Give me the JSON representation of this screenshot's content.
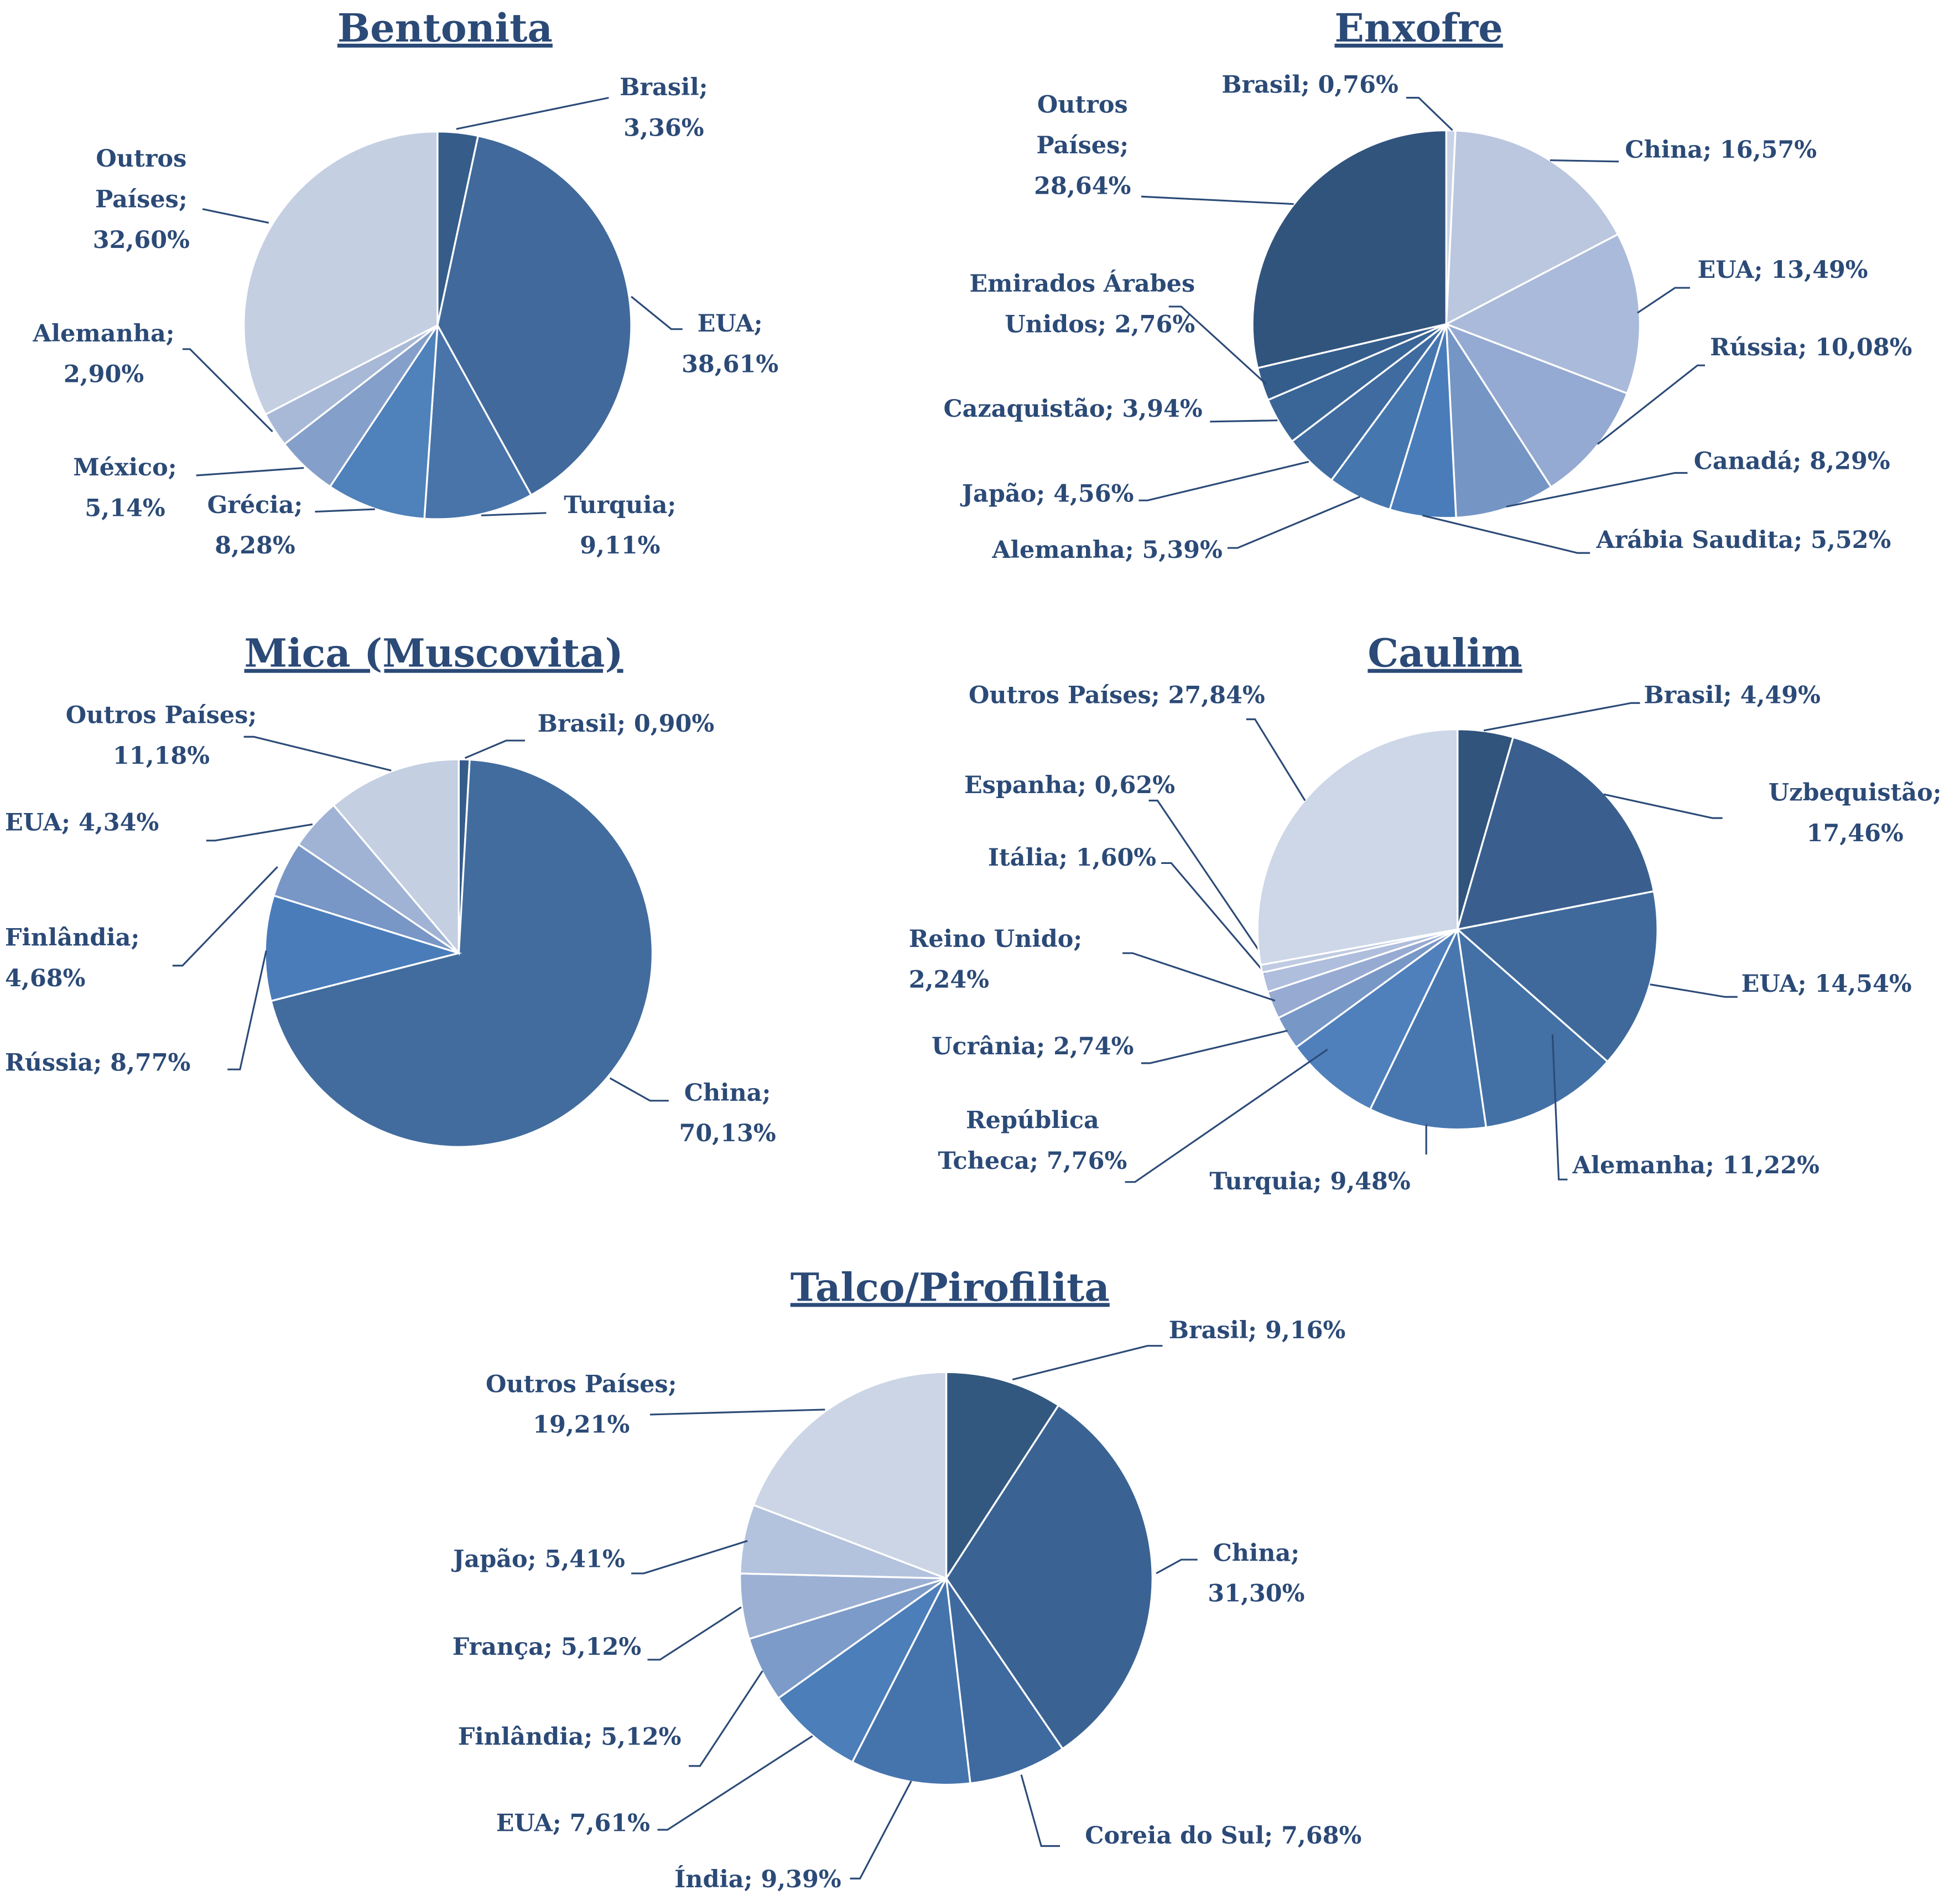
{
  "chart_data": [
    {
      "type": "pie",
      "title": "Bentonita",
      "slices": [
        {
          "label": "Brasil",
          "value": 3.36,
          "lines": [
            "Brasil;",
            "3,36%"
          ],
          "color": "#365d8a"
        },
        {
          "label": "EUA",
          "value": 38.61,
          "lines": [
            "EUA;",
            "38,61%"
          ],
          "color": "#41699b"
        },
        {
          "label": "Turquia",
          "value": 9.11,
          "lines": [
            "Turquia;",
            "9,11%"
          ],
          "color": "#4874aa"
        },
        {
          "label": "Grécia",
          "value": 8.28,
          "lines": [
            "Grécia;",
            "8,28%"
          ],
          "color": "#4f81ba"
        },
        {
          "label": "México",
          "value": 5.14,
          "lines": [
            "México;",
            "5,14%"
          ],
          "color": "#849fc9"
        },
        {
          "label": "Alemanha",
          "value": 2.9,
          "lines": [
            "Alemanha;",
            "2,90%"
          ],
          "color": "#a8b9d7"
        },
        {
          "label": "Outros Países",
          "value": 32.6,
          "lines": [
            "Outros",
            "Países;",
            "32,60%"
          ],
          "color": "#c4cfe2"
        }
      ]
    },
    {
      "type": "pie",
      "title": "Enxofre",
      "slices": [
        {
          "label": "Brasil",
          "value": 0.76,
          "lines": [
            "Brasil; 0,76%"
          ],
          "color": "#c9d3e6"
        },
        {
          "label": "China",
          "value": 16.57,
          "lines": [
            "China; 16,57%"
          ],
          "color": "#bac7df"
        },
        {
          "label": "EUA",
          "value": 13.49,
          "lines": [
            "EUA; 13,49%"
          ],
          "color": "#aabada"
        },
        {
          "label": "Rússia",
          "value": 10.08,
          "lines": [
            "Rússia; 10,08%"
          ],
          "color": "#95aad2"
        },
        {
          "label": "Canadá",
          "value": 8.29,
          "lines": [
            "Canadá; 8,29%"
          ],
          "color": "#7595c4"
        },
        {
          "label": "Arábia Saudita",
          "value": 5.52,
          "lines": [
            "Arábia Saudita; 5,52%"
          ],
          "color": "#4a7cba"
        },
        {
          "label": "Alemanha",
          "value": 5.39,
          "lines": [
            "Alemanha; 5,39%"
          ],
          "color": "#4576ae"
        },
        {
          "label": "Japão",
          "value": 4.56,
          "lines": [
            "Japão; 4,56%"
          ],
          "color": "#3f6ba0"
        },
        {
          "label": "Cazaquistão",
          "value": 3.94,
          "lines": [
            "Cazaquistão; 3,94%"
          ],
          "color": "#3a6597"
        },
        {
          "label": "Emirados Árabes Unidos",
          "value": 2.76,
          "lines": [
            "Emirados Árabes",
            "Unidos; 2,76%"
          ],
          "color": "#355d8c"
        },
        {
          "label": "Outros Países",
          "value": 28.64,
          "lines": [
            "Outros",
            "Países;",
            "28,64%"
          ],
          "color": "#31547c"
        }
      ]
    },
    {
      "type": "pie",
      "title": "Mica (Muscovita)",
      "slices": [
        {
          "label": "Brasil",
          "value": 0.9,
          "lines": [
            "Brasil; 0,90%"
          ],
          "color": "#365d8a"
        },
        {
          "label": "China",
          "value": 70.13,
          "lines": [
            "China;",
            "70,13%"
          ],
          "color": "#426c9e"
        },
        {
          "label": "Rússia",
          "value": 8.77,
          "lines": [
            "Rússia; 8,77%"
          ],
          "color": "#4a7cba"
        },
        {
          "label": "Finlândia",
          "value": 4.68,
          "lines": [
            "Finlândia;",
            "4,68%"
          ],
          "color": "#7896c6"
        },
        {
          "label": "EUA",
          "value": 4.34,
          "lines": [
            "EUA; 4,34%"
          ],
          "color": "#a0b3d5"
        },
        {
          "label": "Outros Países",
          "value": 11.18,
          "lines": [
            "Outros Países;",
            "11,18%"
          ],
          "color": "#c4cfe2"
        }
      ]
    },
    {
      "type": "pie",
      "title": "Caulim",
      "slices": [
        {
          "label": "Brasil",
          "value": 4.49,
          "lines": [
            "Brasil; 4,49%"
          ],
          "color": "#31547c"
        },
        {
          "label": "Uzbequistão",
          "value": 17.46,
          "lines": [
            "Uzbequistão;",
            "17,46%"
          ],
          "color": "#3a5f8e"
        },
        {
          "label": "EUA",
          "value": 14.54,
          "lines": [
            "EUA; 14,54%"
          ],
          "color": "#3f699b"
        },
        {
          "label": "Alemanha",
          "value": 11.22,
          "lines": [
            "Alemanha; 11,22%"
          ],
          "color": "#4371a6"
        },
        {
          "label": "Turquia",
          "value": 9.48,
          "lines": [
            "Turquia; 9,48%"
          ],
          "color": "#4877b0"
        },
        {
          "label": "República Tcheca",
          "value": 7.76,
          "lines": [
            "República",
            "Tcheca; 7,76%"
          ],
          "color": "#4f80bb"
        },
        {
          "label": "Ucrânia",
          "value": 2.74,
          "lines": [
            "Ucrânia; 2,74%"
          ],
          "color": "#7797c6"
        },
        {
          "label": "Reino Unido",
          "value": 2.24,
          "lines": [
            "Reino Unido;",
            "2,24%"
          ],
          "color": "#97aad2"
        },
        {
          "label": "Itália",
          "value": 1.6,
          "lines": [
            "Itália; 1,60%"
          ],
          "color": "#afbedc"
        },
        {
          "label": "Espanha",
          "value": 0.62,
          "lines": [
            "Espanha; 0,62%"
          ],
          "color": "#bfcbe2"
        },
        {
          "label": "Outros Países",
          "value": 27.84,
          "lines": [
            "Outros Países; 27,84%"
          ],
          "color": "#cdd7e7"
        }
      ]
    },
    {
      "type": "pie",
      "title": "Talco/Pirofilita",
      "slices": [
        {
          "label": "Brasil",
          "value": 9.16,
          "lines": [
            "Brasil; 9,16%"
          ],
          "color": "#32587f"
        },
        {
          "label": "China",
          "value": 31.3,
          "lines": [
            "China;",
            "31,30%"
          ],
          "color": "#3a6393"
        },
        {
          "label": "Coreia do Sul",
          "value": 7.68,
          "lines": [
            "Coreia do Sul; 7,68%"
          ],
          "color": "#3f6a9f"
        },
        {
          "label": "Índia",
          "value": 9.39,
          "lines": [
            "Índia; 9,39%"
          ],
          "color": "#4574ad"
        },
        {
          "label": "EUA",
          "value": 7.61,
          "lines": [
            "EUA; 7,61%"
          ],
          "color": "#4c7eb9"
        },
        {
          "label": "Finlândia",
          "value": 5.12,
          "lines": [
            "Finlândia; 5,12%"
          ],
          "color": "#7d9bc8"
        },
        {
          "label": "França",
          "value": 5.12,
          "lines": [
            "França; 5,12%"
          ],
          "color": "#9cb0d4"
        },
        {
          "label": "Japão",
          "value": 5.41,
          "lines": [
            "Japão; 5,41%"
          ],
          "color": "#b3c2dd"
        },
        {
          "label": "Outros Países",
          "value": 19.21,
          "lines": [
            "Outros Países;",
            "19,21%"
          ],
          "color": "#cbd5e6"
        }
      ]
    }
  ]
}
